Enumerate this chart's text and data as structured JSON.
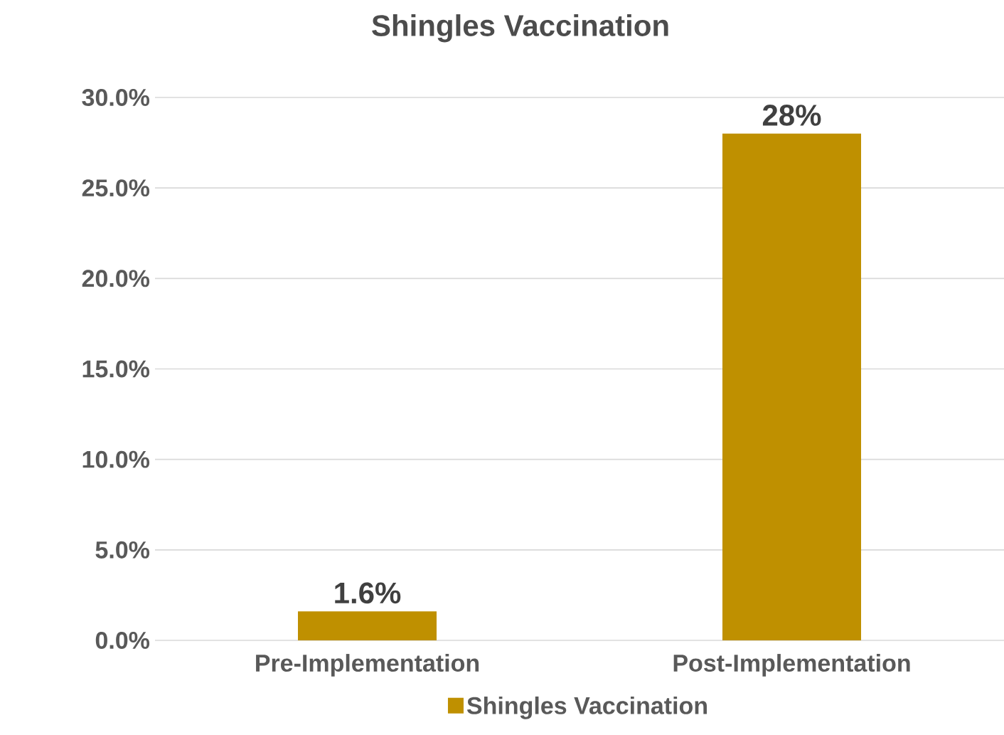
{
  "chart_data": {
    "type": "bar",
    "title": "Shingles Vaccination",
    "categories": [
      "Pre-Implementation",
      "Post-Implementation"
    ],
    "series": [
      {
        "name": "Shingles Vaccination",
        "color": "#bf9000",
        "values": [
          1.6,
          28
        ],
        "value_labels": [
          "1.6%",
          "28%"
        ]
      }
    ],
    "ylim": [
      0,
      30
    ],
    "yticks": [
      {
        "value": 0,
        "label": "0.0%"
      },
      {
        "value": 5,
        "label": "5.0%"
      },
      {
        "value": 10,
        "label": "10.0%"
      },
      {
        "value": 15,
        "label": "15.0%"
      },
      {
        "value": 20,
        "label": "20.0%"
      },
      {
        "value": 25,
        "label": "25.0%"
      },
      {
        "value": 30,
        "label": "30.0%"
      }
    ],
    "grid": "y",
    "legend": "bottom"
  }
}
